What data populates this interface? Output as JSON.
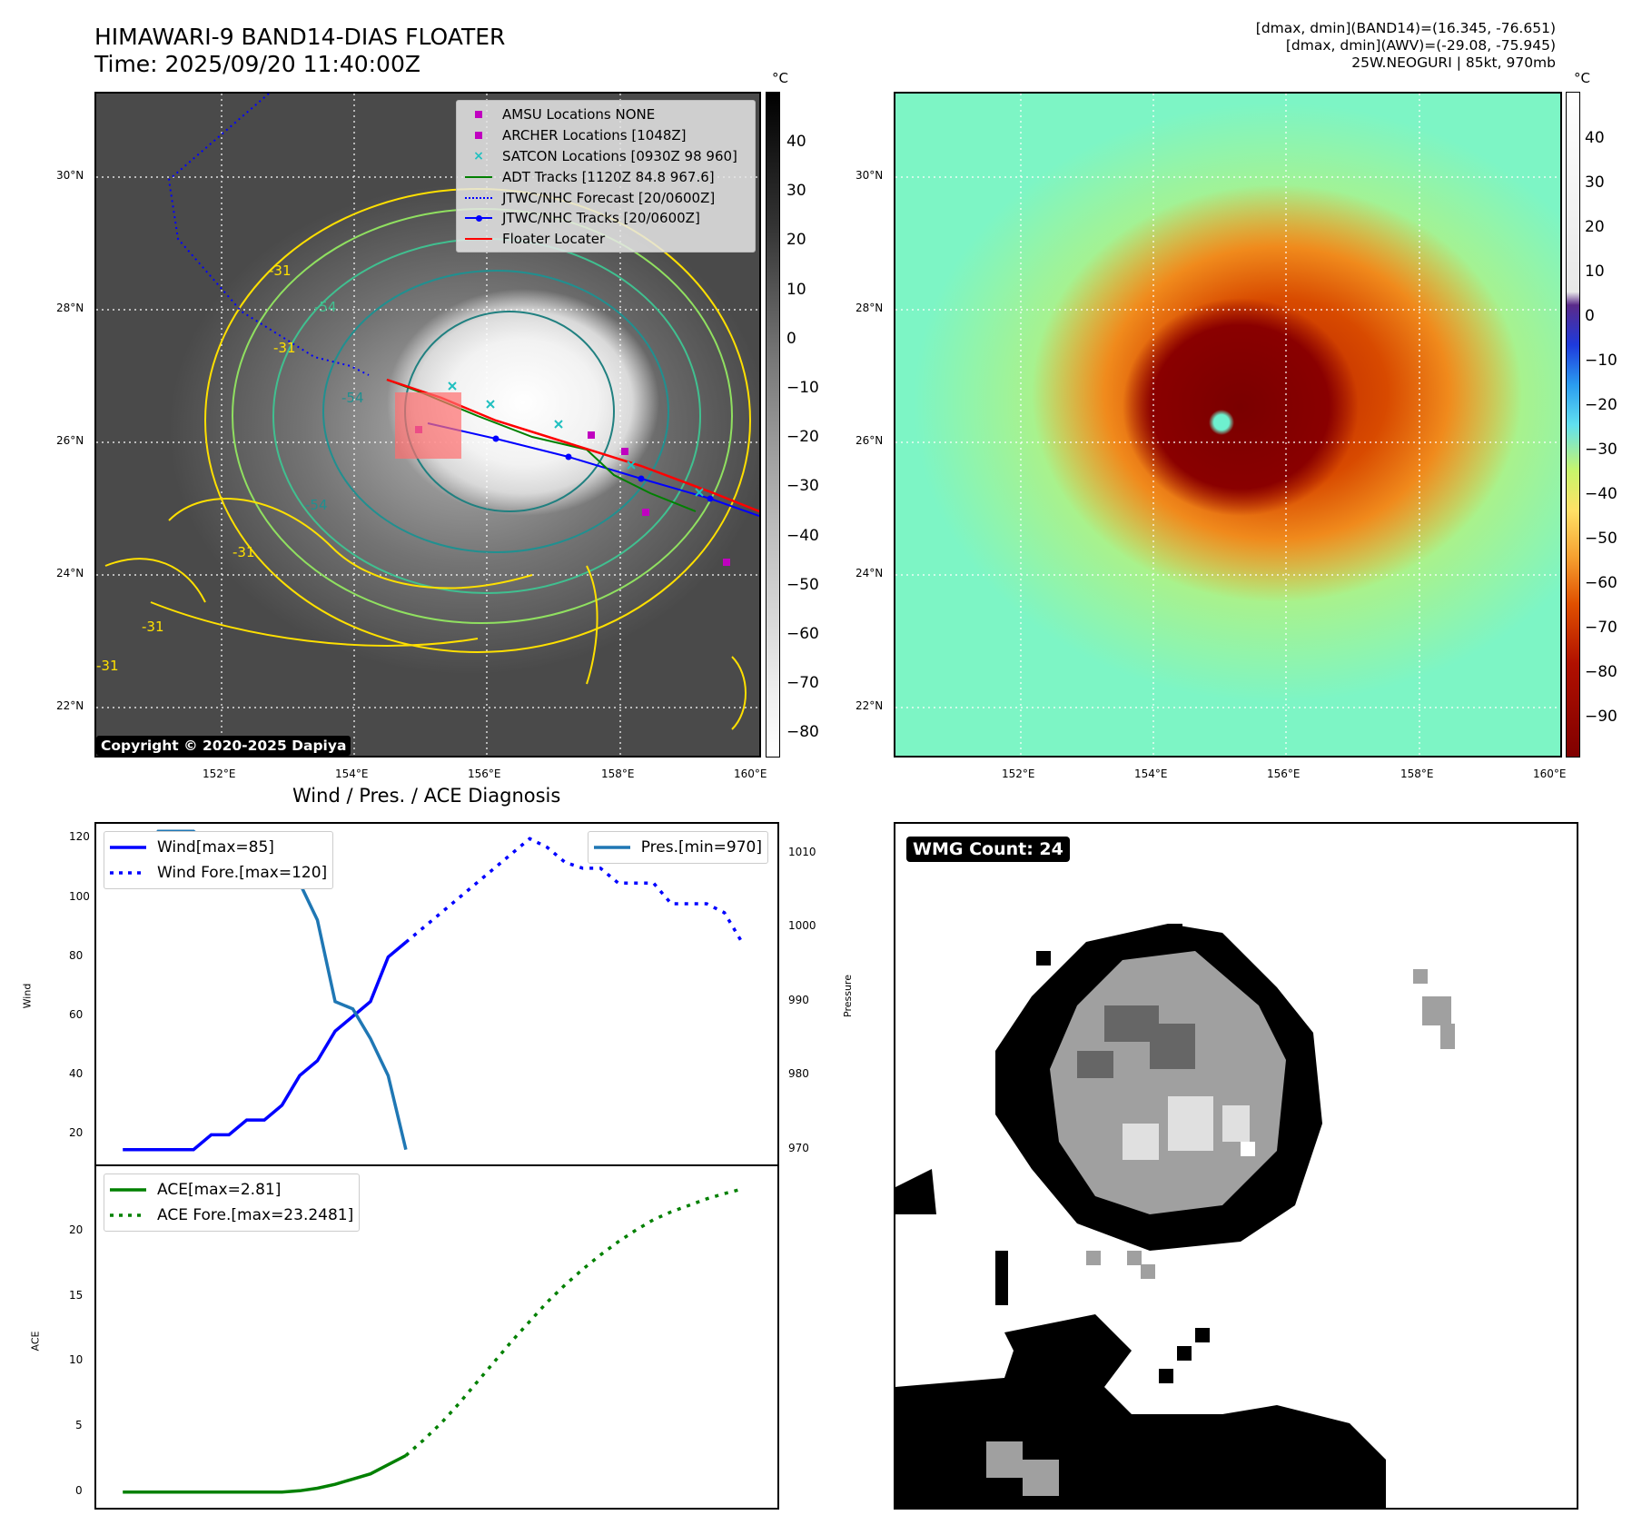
{
  "header": {
    "title_line1": "HIMAWARI-9 BAND14-DIAS FLOATER",
    "title_line2": "Time: 2025/09/20 11:40:00Z",
    "stats_line1": "[dmax, dmin](BAND14)=(16.345, -76.651)",
    "stats_line2": "[dmax, dmin](AWV)=(-29.08, -75.945)",
    "stats_line3": "25W.NEOGURI | 85kt, 970mb"
  },
  "map": {
    "lat_ticks": [
      "30°N",
      "28°N",
      "26°N",
      "24°N",
      "22°N"
    ],
    "lon_ticks": [
      "152°E",
      "154°E",
      "156°E",
      "158°E",
      "160°E"
    ],
    "copyright": "Copyright © 2020-2025 Dapiya",
    "contour_labels": [
      "-31",
      "-54",
      "-54",
      "-54",
      "-31",
      "-31",
      "-31",
      "-31"
    ],
    "legend": [
      {
        "label": "AMSU Locations NONE",
        "marker": "square",
        "color": "#c000c0"
      },
      {
        "label": "ARCHER Locations [1048Z]",
        "marker": "square",
        "color": "#c000c0"
      },
      {
        "label": "SATCON Locations [0930Z 98 960]",
        "marker": "x",
        "color": "#20c0c0"
      },
      {
        "label": "ADT Tracks [1120Z 84.8 967.6]",
        "marker": "line",
        "color": "#008000"
      },
      {
        "label": "JTWC/NHC Forecast [20/0600Z]",
        "marker": "dotted",
        "color": "#0000ff"
      },
      {
        "label": "JTWC/NHC Tracks [20/0600Z]",
        "marker": "line-dot",
        "color": "#0000ff"
      },
      {
        "label": "Floater Locater",
        "marker": "line",
        "color": "#ff0000"
      }
    ]
  },
  "colorbar_ir": {
    "unit": "°C",
    "ticks": [
      "40",
      "30",
      "20",
      "10",
      "0",
      "−10",
      "−20",
      "−30",
      "−40",
      "−50",
      "−60",
      "−70",
      "−80"
    ]
  },
  "colorbar_awv": {
    "unit": "°C",
    "ticks": [
      "40",
      "30",
      "20",
      "10",
      "0",
      "−10",
      "−20",
      "−30",
      "−40",
      "−50",
      "−60",
      "−70",
      "−80",
      "−90"
    ]
  },
  "diagnosis": {
    "title": "Wind / Pres. / ACE Diagnosis",
    "wind_axis_label": "Wind",
    "pressure_axis_label": "Pressure",
    "ace_axis_label": "ACE",
    "wmg_badge": "WMG Count: 24"
  },
  "chart_data": [
    {
      "type": "line",
      "series": [
        {
          "name": "Wind[max=85]",
          "style": "solid",
          "color": "#0000ff",
          "axis": "left",
          "x": [
            0,
            1,
            2,
            3,
            4,
            5,
            6,
            7,
            8,
            9,
            10,
            11,
            12,
            13,
            14,
            15,
            16
          ],
          "values": [
            15,
            15,
            15,
            15,
            15,
            20,
            20,
            25,
            25,
            30,
            40,
            45,
            55,
            60,
            65,
            80,
            85
          ]
        },
        {
          "name": "Wind Fore.[max=120]",
          "style": "dotted",
          "color": "#0000ff",
          "axis": "left",
          "x": [
            16,
            17,
            18,
            19,
            20,
            21,
            22,
            23,
            24,
            25,
            26,
            27,
            28,
            29,
            30,
            31,
            32,
            33,
            34,
            35
          ],
          "values": [
            85,
            90,
            95,
            100,
            105,
            110,
            115,
            120,
            117,
            112,
            110,
            110,
            105,
            105,
            105,
            98,
            98,
            98,
            95,
            85
          ]
        },
        {
          "name": "Pres.[min=970]",
          "style": "solid",
          "color": "#1f77b4",
          "axis": "right",
          "x": [
            0,
            1,
            2,
            3,
            4,
            5,
            6,
            7,
            8,
            9,
            10,
            11,
            12,
            13,
            14,
            15,
            16
          ],
          "values": [
            1010,
            1010,
            1013,
            1013,
            1013,
            1011,
            1010,
            1010,
            1010,
            1009,
            1006,
            1001,
            990,
            989,
            985,
            980,
            970
          ]
        }
      ],
      "y_left_label": "Wind",
      "y_left_ticks": [
        20,
        40,
        60,
        80,
        100,
        120
      ],
      "y_left_lim": [
        10,
        125
      ],
      "y_right_label": "Pressure",
      "y_right_ticks": [
        970,
        980,
        990,
        1000,
        1010
      ],
      "y_right_lim": [
        968,
        1014
      ],
      "x_lim": [
        -1.5,
        37
      ]
    },
    {
      "type": "line",
      "series": [
        {
          "name": "ACE[max=2.81]",
          "style": "solid",
          "color": "#008000",
          "x": [
            0,
            1,
            2,
            3,
            4,
            5,
            6,
            7,
            8,
            9,
            10,
            11,
            12,
            13,
            14,
            15,
            16
          ],
          "values": [
            0,
            0,
            0,
            0,
            0,
            0,
            0,
            0,
            0,
            0,
            0.1,
            0.3,
            0.6,
            1.0,
            1.4,
            2.1,
            2.81
          ]
        },
        {
          "name": "ACE Fore.[max=23.2481]",
          "style": "dotted",
          "color": "#008000",
          "x": [
            16,
            17,
            18,
            19,
            20,
            21,
            22,
            23,
            24,
            25,
            26,
            27,
            28,
            29,
            30,
            31,
            32,
            33,
            34,
            35
          ],
          "values": [
            2.81,
            4.0,
            5.3,
            6.8,
            8.4,
            10.0,
            11.6,
            13.1,
            14.6,
            15.9,
            17.1,
            18.2,
            19.2,
            20.1,
            20.9,
            21.5,
            22.0,
            22.5,
            22.9,
            23.25
          ]
        }
      ],
      "y_label": "ACE",
      "y_ticks": [
        0,
        5,
        10,
        15,
        20
      ],
      "y_lim": [
        -1.2,
        25
      ],
      "x_lim": [
        -1.5,
        37
      ]
    }
  ]
}
